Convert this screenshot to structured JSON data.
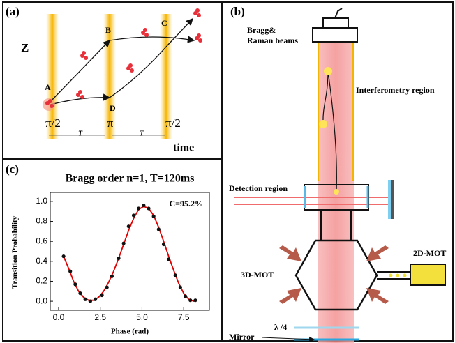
{
  "panel_a": {
    "label": "(a)",
    "axis_z": "Z",
    "points": [
      "A",
      "B",
      "C",
      "D"
    ],
    "pulses": [
      "π/2",
      "π",
      "π/2"
    ],
    "intervals": [
      "T",
      "T"
    ],
    "axis_time": "time"
  },
  "panel_b": {
    "label": "(b)",
    "beams": [
      "Bragg&",
      "Raman beams"
    ],
    "interferometry": "Interferometry region",
    "detection": "Detection region",
    "mot2d": "2D-MOT",
    "mot3d": "3D-MOT",
    "waveplate": "λ /4",
    "mirror": "Mirror"
  },
  "panel_c": {
    "label": "(c)"
  },
  "chart_data": {
    "type": "scatter",
    "title": "Bragg order n=1, T=120ms",
    "annotation": "C=95.2%",
    "x_label": "Phase (rad)",
    "y_label": "Transition Probability",
    "xlim": [
      -0.5,
      9.04
    ],
    "ylim": [
      -0.09,
      1.09
    ],
    "xticks": [
      {
        "value": 0,
        "label": "0.0"
      },
      2.5,
      {
        "value": 5,
        "label": "5.0"
      },
      7.5
    ],
    "yticks": [
      {
        "value": 0,
        "label": "0.0"
      },
      0.2,
      0.4,
      0.6,
      0.8,
      {
        "value": 1,
        "label": "1.0"
      }
    ],
    "series": [
      {
        "type": "scatter",
        "color": "#111111",
        "x": [
          0.3,
          0.7,
          1.0,
          1.3,
          1.6,
          1.9,
          2.2,
          2.6,
          2.9,
          3.2,
          3.6,
          3.9,
          4.2,
          4.5,
          4.8,
          5.1,
          5.4,
          5.7,
          6.0,
          6.3,
          6.6,
          7.0,
          7.3,
          7.6,
          7.9,
          8.2
        ],
        "values": [
          0.45,
          0.3,
          0.17,
          0.08,
          0.02,
          0.0,
          0.02,
          0.06,
          0.14,
          0.25,
          0.43,
          0.58,
          0.75,
          0.86,
          0.93,
          0.96,
          0.93,
          0.85,
          0.72,
          0.57,
          0.42,
          0.26,
          0.14,
          0.05,
          0.01,
          0.01
        ]
      },
      {
        "type": "line",
        "color": "#e00000",
        "x": [
          0.3,
          0.6,
          0.9,
          1.2,
          1.5,
          1.8,
          2.1,
          2.4,
          2.7,
          3.0,
          3.3,
          3.6,
          3.9,
          4.2,
          4.5,
          4.8,
          5.1,
          5.4,
          5.7,
          6.0,
          6.3,
          6.6,
          6.9,
          7.2,
          7.5,
          7.8,
          8.1,
          8.3
        ],
        "values": [
          0.45,
          0.33,
          0.2,
          0.1,
          0.04,
          0.01,
          0.01,
          0.04,
          0.1,
          0.19,
          0.3,
          0.43,
          0.57,
          0.71,
          0.83,
          0.92,
          0.95,
          0.93,
          0.86,
          0.74,
          0.6,
          0.45,
          0.31,
          0.18,
          0.08,
          0.02,
          0.0,
          0.01
        ]
      }
    ]
  }
}
